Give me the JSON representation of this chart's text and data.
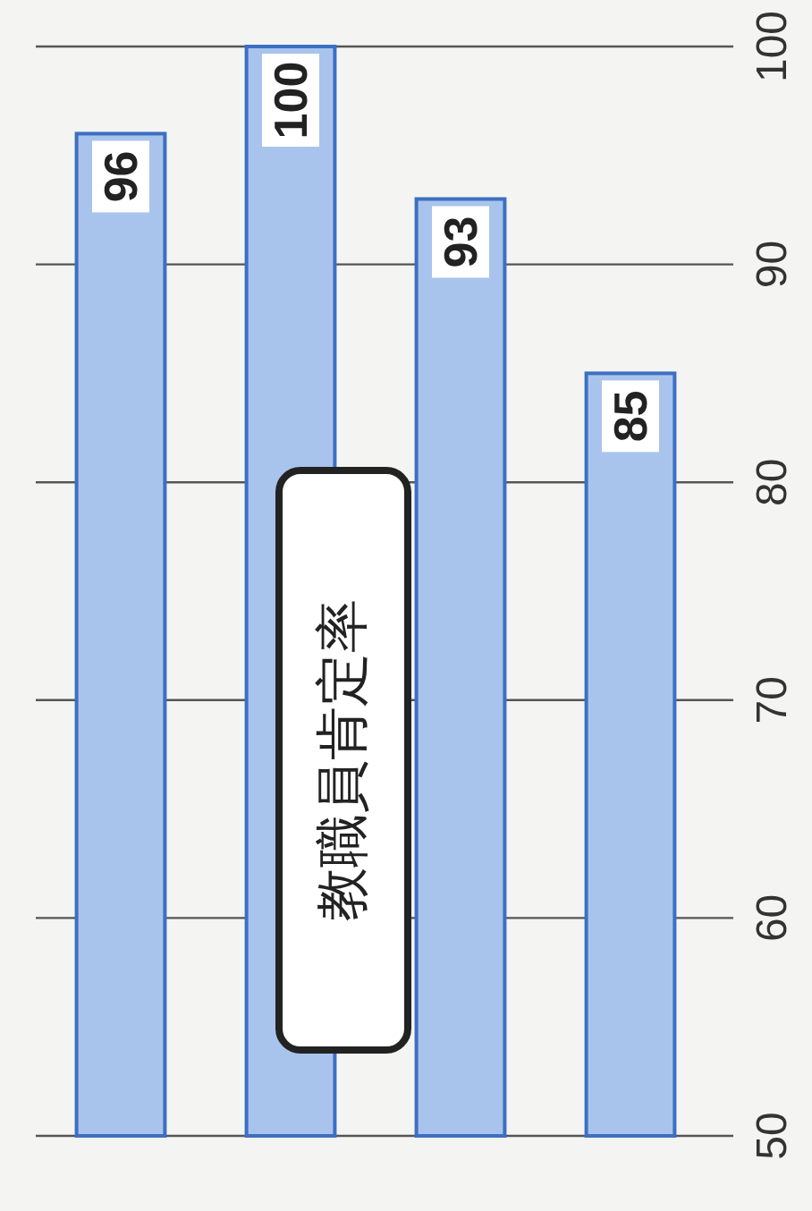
{
  "chart_data": {
    "type": "bar",
    "title": "教職員肯定率",
    "categories": [
      null,
      null,
      null,
      null
    ],
    "values": [
      96,
      100,
      93,
      85
    ],
    "color": "#a9c4ec",
    "data_labels": true,
    "ylim": [
      50,
      100
    ],
    "yticks": [
      50,
      60,
      70,
      80,
      90,
      100
    ],
    "grid": "y"
  }
}
